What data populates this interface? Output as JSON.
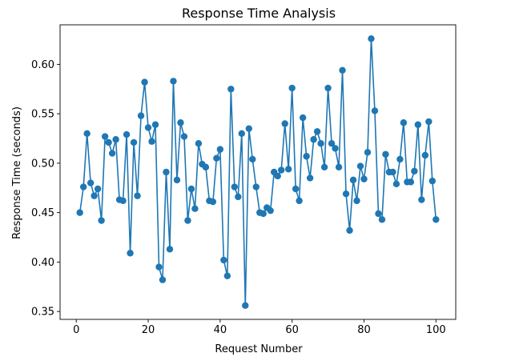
{
  "chart_data": {
    "type": "line",
    "title": "Response Time Analysis",
    "xlabel": "Request Number",
    "ylabel": "Response Time (seconds)",
    "xlim": [
      -4.5,
      105.5
    ],
    "ylim": [
      0.342,
      0.64
    ],
    "xticks": [
      0,
      20,
      40,
      60,
      80,
      100
    ],
    "xtick_labels": [
      "0",
      "20",
      "40",
      "60",
      "80",
      "100"
    ],
    "yticks": [
      0.35,
      0.4,
      0.45,
      0.5,
      0.55,
      0.6
    ],
    "ytick_labels": [
      "0.35",
      "0.40",
      "0.45",
      "0.50",
      "0.55",
      "0.60"
    ],
    "grid": false,
    "legend": false,
    "series": [
      {
        "color": "#1f77b4",
        "marker": "circle",
        "x": [
          1,
          2,
          3,
          4,
          5,
          6,
          7,
          8,
          9,
          10,
          11,
          12,
          13,
          14,
          15,
          16,
          17,
          18,
          19,
          20,
          21,
          22,
          23,
          24,
          25,
          26,
          27,
          28,
          29,
          30,
          31,
          32,
          33,
          34,
          35,
          36,
          37,
          38,
          39,
          40,
          41,
          42,
          43,
          44,
          45,
          46,
          47,
          48,
          49,
          50,
          51,
          52,
          53,
          54,
          55,
          56,
          57,
          58,
          59,
          60,
          61,
          62,
          63,
          64,
          65,
          66,
          67,
          68,
          69,
          70,
          71,
          72,
          73,
          74,
          75,
          76,
          77,
          78,
          79,
          80,
          81,
          82,
          83,
          84,
          85,
          86,
          87,
          88,
          89,
          90,
          91,
          92,
          93,
          94,
          95,
          96,
          97,
          98,
          99,
          100
        ],
        "y": [
          0.45,
          0.476,
          0.53,
          0.48,
          0.467,
          0.474,
          0.442,
          0.527,
          0.521,
          0.51,
          0.524,
          0.463,
          0.462,
          0.529,
          0.409,
          0.521,
          0.467,
          0.548,
          0.582,
          0.536,
          0.522,
          0.539,
          0.395,
          0.382,
          0.491,
          0.413,
          0.583,
          0.483,
          0.541,
          0.527,
          0.442,
          0.474,
          0.454,
          0.52,
          0.499,
          0.496,
          0.462,
          0.461,
          0.505,
          0.514,
          0.402,
          0.386,
          0.575,
          0.476,
          0.466,
          0.53,
          0.356,
          0.535,
          0.504,
          0.476,
          0.45,
          0.449,
          0.455,
          0.452,
          0.491,
          0.487,
          0.493,
          0.54,
          0.494,
          0.576,
          0.474,
          0.462,
          0.546,
          0.507,
          0.485,
          0.524,
          0.532,
          0.52,
          0.496,
          0.576,
          0.52,
          0.515,
          0.496,
          0.594,
          0.469,
          0.432,
          0.483,
          0.462,
          0.497,
          0.484,
          0.511,
          0.626,
          0.553,
          0.449,
          0.443,
          0.509,
          0.491,
          0.491,
          0.479,
          0.504,
          0.541,
          0.481,
          0.481,
          0.492,
          0.539,
          0.463,
          0.508,
          0.542,
          0.482,
          0.443
        ]
      }
    ]
  }
}
